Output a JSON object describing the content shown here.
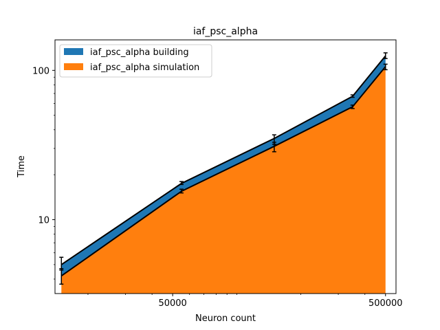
{
  "chart_data": {
    "type": "area",
    "stacked": true,
    "title": "iaf_psc_alpha",
    "xlabel": "Neuron count",
    "ylabel": "Time",
    "xscale": "log",
    "yscale": "log",
    "xlim": [
      14000,
      560000
    ],
    "ylim": [
      3.2,
      160
    ],
    "x": [
      15000,
      55000,
      150000,
      350000,
      500000
    ],
    "xticks": [
      {
        "value": 50000,
        "label": "50000"
      },
      {
        "value": 500000,
        "label": "500000"
      }
    ],
    "yticks": [
      {
        "value": 10,
        "label": "10"
      },
      {
        "value": 100,
        "label": "100"
      }
    ],
    "grid": false,
    "legend_position": "top-left",
    "series": [
      {
        "name": "iaf_psc_alpha building",
        "color": "#1f77b4",
        "values": [
          5.0,
          17.5,
          35.0,
          67.0,
          125.0
        ],
        "error_low": [
          4.6,
          17.2,
          32.0,
          66.0,
          120.0
        ],
        "error_high": [
          5.6,
          18.0,
          37.0,
          68.5,
          131.0
        ]
      },
      {
        "name": "iaf_psc_alpha simulation",
        "color": "#ff7f0e",
        "values": [
          4.2,
          15.5,
          31.0,
          57.0,
          106.0
        ],
        "error_low": [
          3.7,
          15.1,
          28.5,
          55.5,
          101.0
        ],
        "error_high": [
          4.7,
          16.0,
          33.0,
          58.5,
          110.0
        ]
      }
    ]
  }
}
